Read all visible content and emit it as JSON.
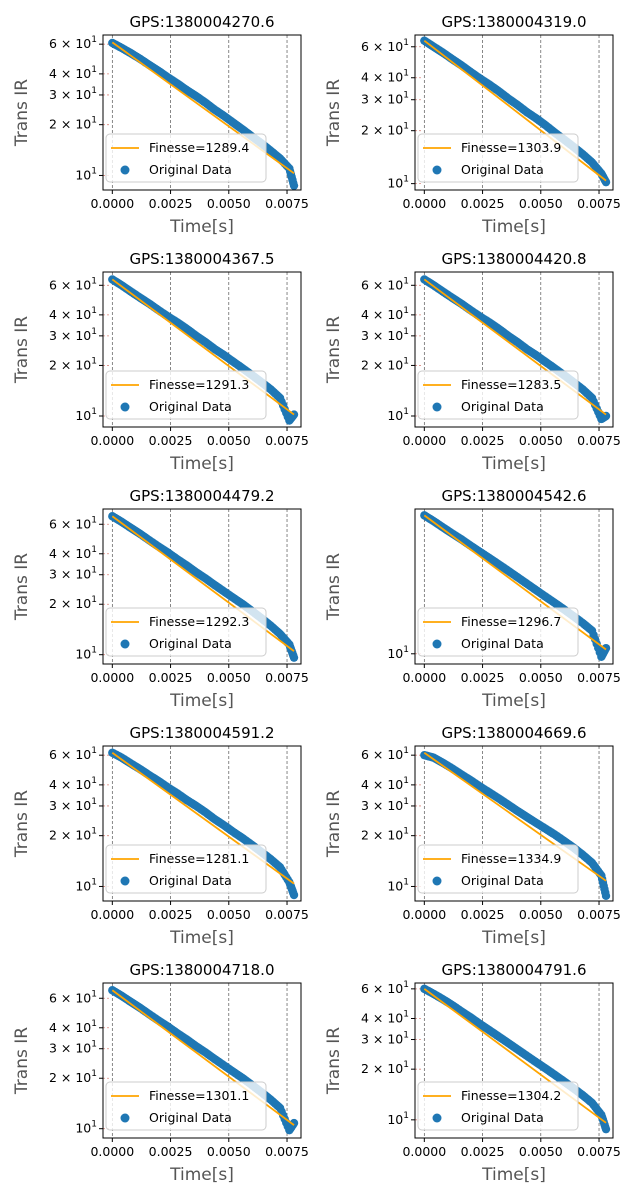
{
  "chart_data": [
    {
      "type": "scatter",
      "title": "GPS:1380004270.6",
      "xlabel": "Time[s]",
      "ylabel": "Trans IR",
      "yscale": "log",
      "xlim": [
        -0.0004,
        0.0081
      ],
      "ylim": [
        8.2,
        68
      ],
      "xticks": [
        "0.0000",
        "0.0025",
        "0.0050",
        "0.0075"
      ],
      "yticks": [
        {
          "v": 10,
          "m": "",
          "e": "1"
        },
        {
          "v": 20,
          "m": "2 × ",
          "e": "1"
        },
        {
          "v": 30,
          "m": "3 × ",
          "e": "1"
        },
        {
          "v": 40,
          "m": "4 × ",
          "e": "1"
        },
        {
          "v": 60,
          "m": "6 × ",
          "e": "1"
        }
      ],
      "fit": {
        "name": "Finesse=1289.4",
        "y0": 61.5,
        "y1": 10.3
      },
      "series": [
        {
          "name": "Original Data",
          "x": [
            0.0,
            0.0004,
            0.0008,
            0.0012,
            0.0016,
            0.002,
            0.0024,
            0.0028,
            0.0032,
            0.0036,
            0.004,
            0.0044,
            0.0048,
            0.0052,
            0.0056,
            0.006,
            0.0064,
            0.0068,
            0.0072,
            0.0076,
            0.0078
          ],
          "y": [
            61,
            57,
            53,
            49,
            45,
            41.5,
            38,
            35,
            32,
            29.5,
            27,
            24.5,
            22.5,
            20.5,
            18.7,
            17,
            15.5,
            14,
            12.6,
            11,
            8.7
          ]
        }
      ],
      "legend": "lower-left",
      "grid": "vertical-dashed"
    },
    {
      "type": "scatter",
      "title": "GPS:1380004319.0",
      "xlabel": "Time[s]",
      "ylabel": "Trans IR",
      "yscale": "log",
      "xlim": [
        -0.0004,
        0.0081
      ],
      "ylim": [
        9.2,
        70
      ],
      "xticks": [
        "0.0000",
        "0.0025",
        "0.0050",
        "0.0075"
      ],
      "yticks": [
        {
          "v": 10,
          "m": "",
          "e": "1"
        },
        {
          "v": 20,
          "m": "2 × ",
          "e": "1"
        },
        {
          "v": 30,
          "m": "3 × ",
          "e": "1"
        },
        {
          "v": 40,
          "m": "4 × ",
          "e": "1"
        },
        {
          "v": 60,
          "m": "6 × ",
          "e": "1"
        }
      ],
      "fit": {
        "name": "Finesse=1303.9",
        "y0": 65,
        "y1": 10.4
      },
      "series": [
        {
          "name": "Original Data",
          "x": [
            0.0,
            0.0004,
            0.0008,
            0.0012,
            0.0016,
            0.002,
            0.0024,
            0.0028,
            0.0032,
            0.0036,
            0.004,
            0.0044,
            0.0048,
            0.0052,
            0.0056,
            0.006,
            0.0064,
            0.0068,
            0.0072,
            0.0076,
            0.0078
          ],
          "y": [
            65,
            60,
            55.5,
            51,
            47,
            43,
            39.5,
            36.5,
            33.5,
            30.5,
            28,
            25.5,
            23.5,
            21.5,
            19.5,
            17.8,
            16.2,
            14.7,
            13.2,
            11.4,
            10.2
          ]
        }
      ],
      "legend": "lower-left",
      "grid": "vertical-dashed"
    },
    {
      "type": "scatter",
      "title": "GPS:1380004367.5",
      "xlabel": "Time[s]",
      "ylabel": "Trans IR",
      "yscale": "log",
      "xlim": [
        -0.0004,
        0.0081
      ],
      "ylim": [
        8.6,
        72
      ],
      "xticks": [
        "0.0000",
        "0.0025",
        "0.0050",
        "0.0075"
      ],
      "yticks": [
        {
          "v": 10,
          "m": "",
          "e": "1"
        },
        {
          "v": 20,
          "m": "2 × ",
          "e": "1"
        },
        {
          "v": 30,
          "m": "3 × ",
          "e": "1"
        },
        {
          "v": 40,
          "m": "4 × ",
          "e": "1"
        },
        {
          "v": 60,
          "m": "6 × ",
          "e": "1"
        }
      ],
      "fit": {
        "name": "Finesse=1291.3",
        "y0": 65,
        "y1": 10.2
      },
      "series": [
        {
          "name": "Original Data",
          "x": [
            0.0,
            0.0004,
            0.0008,
            0.0012,
            0.0016,
            0.002,
            0.0024,
            0.0028,
            0.0032,
            0.0036,
            0.004,
            0.0044,
            0.0048,
            0.0052,
            0.0056,
            0.006,
            0.0064,
            0.0068,
            0.0072,
            0.0076,
            0.0078
          ],
          "y": [
            65,
            60,
            55,
            50.5,
            46.5,
            42.5,
            39,
            36,
            33,
            30,
            27.5,
            25,
            23,
            21,
            19.2,
            17.5,
            15.9,
            14.4,
            12.8,
            9.4,
            10.2
          ]
        }
      ],
      "legend": "lower-left",
      "grid": "vertical-dashed"
    },
    {
      "type": "scatter",
      "title": "GPS:1380004420.8",
      "xlabel": "Time[s]",
      "ylabel": "Trans IR",
      "yscale": "log",
      "xlim": [
        -0.0004,
        0.0081
      ],
      "ylim": [
        8.6,
        72
      ],
      "xticks": [
        "0.0000",
        "0.0025",
        "0.0050",
        "0.0075"
      ],
      "yticks": [
        {
          "v": 10,
          "m": "",
          "e": "1"
        },
        {
          "v": 20,
          "m": "2 × ",
          "e": "1"
        },
        {
          "v": 30,
          "m": "3 × ",
          "e": "1"
        },
        {
          "v": 40,
          "m": "4 × ",
          "e": "1"
        },
        {
          "v": 60,
          "m": "6 × ",
          "e": "1"
        }
      ],
      "fit": {
        "name": "Finesse=1283.5",
        "y0": 65,
        "y1": 10.2
      },
      "series": [
        {
          "name": "Original Data",
          "x": [
            0.0,
            0.0004,
            0.0008,
            0.0012,
            0.0016,
            0.002,
            0.0024,
            0.0028,
            0.0032,
            0.0036,
            0.004,
            0.0044,
            0.0048,
            0.0052,
            0.0056,
            0.006,
            0.0064,
            0.0068,
            0.0072,
            0.0076,
            0.0078
          ],
          "y": [
            65,
            60,
            55,
            50.5,
            46.5,
            42.5,
            39,
            36,
            33,
            30,
            27.5,
            25,
            23,
            21,
            19.2,
            17.5,
            15.9,
            14.4,
            12.8,
            9.6,
            10
          ]
        }
      ],
      "legend": "lower-left",
      "grid": "vertical-dashed"
    },
    {
      "type": "scatter",
      "title": "GPS:1380004479.2",
      "xlabel": "Time[s]",
      "ylabel": "Trans IR",
      "yscale": "log",
      "xlim": [
        -0.0004,
        0.0081
      ],
      "ylim": [
        8.8,
        74
      ],
      "xticks": [
        "0.0000",
        "0.0025",
        "0.0050",
        "0.0075"
      ],
      "yticks": [
        {
          "v": 10,
          "m": "",
          "e": "1"
        },
        {
          "v": 20,
          "m": "2 × ",
          "e": "1"
        },
        {
          "v": 30,
          "m": "3 × ",
          "e": "1"
        },
        {
          "v": 40,
          "m": "4 × ",
          "e": "1"
        },
        {
          "v": 60,
          "m": "6 × ",
          "e": "1"
        }
      ],
      "fit": {
        "name": "Finesse=1292.3",
        "y0": 67,
        "y1": 10.5
      },
      "series": [
        {
          "name": "Original Data",
          "x": [
            0.0,
            0.0004,
            0.0008,
            0.0012,
            0.0016,
            0.002,
            0.0024,
            0.0028,
            0.0032,
            0.0036,
            0.004,
            0.0044,
            0.0048,
            0.0052,
            0.0056,
            0.006,
            0.0064,
            0.0068,
            0.0072,
            0.0076,
            0.0078
          ],
          "y": [
            67,
            62,
            57,
            52.5,
            48,
            44,
            40.5,
            37,
            34,
            31,
            28.5,
            26,
            23.8,
            21.8,
            20,
            18.2,
            16.5,
            14.9,
            13.3,
            11.5,
            9.6
          ]
        }
      ],
      "legend": "lower-left",
      "grid": "vertical-dashed"
    },
    {
      "type": "scatter",
      "title": "GPS:1380004542.6",
      "xlabel": "Time[s]",
      "ylabel": "Trans IR",
      "yscale": "log",
      "xlim": [
        -0.0004,
        0.0081
      ],
      "ylim": [
        8.7,
        72
      ],
      "xticks": [
        "0.0000",
        "0.0025",
        "0.0050",
        "0.0075"
      ],
      "yticks": [
        {
          "v": 10,
          "m": "",
          "e": "1"
        }
      ],
      "fit": {
        "name": "Finesse=1296.7",
        "y0": 66,
        "y1": 10.6
      },
      "series": [
        {
          "name": "Original Data",
          "x": [
            0.0,
            0.0004,
            0.0008,
            0.0012,
            0.0016,
            0.002,
            0.0024,
            0.0028,
            0.0032,
            0.0036,
            0.004,
            0.0044,
            0.0048,
            0.0052,
            0.0056,
            0.006,
            0.0064,
            0.0068,
            0.0072,
            0.0076,
            0.0078
          ],
          "y": [
            66,
            61,
            56,
            51.5,
            47.5,
            43.5,
            40,
            36.8,
            33.8,
            31,
            28.4,
            26,
            23.8,
            21.8,
            20,
            18.3,
            16.7,
            15.2,
            13.7,
            9.6,
            10.8
          ]
        }
      ],
      "legend": "lower-left",
      "grid": "vertical-dashed"
    },
    {
      "type": "scatter",
      "title": "GPS:1380004591.2",
      "xlabel": "Time[s]",
      "ylabel": "Trans IR",
      "yscale": "log",
      "xlim": [
        -0.0004,
        0.0081
      ],
      "ylim": [
        8.2,
        68
      ],
      "xticks": [
        "0.0000",
        "0.0025",
        "0.0050",
        "0.0075"
      ],
      "yticks": [
        {
          "v": 10,
          "m": "",
          "e": "1"
        },
        {
          "v": 20,
          "m": "2 × ",
          "e": "1"
        },
        {
          "v": 30,
          "m": "3 × ",
          "e": "1"
        },
        {
          "v": 40,
          "m": "4 × ",
          "e": "1"
        },
        {
          "v": 60,
          "m": "6 × ",
          "e": "1"
        }
      ],
      "fit": {
        "name": "Finesse=1281.1",
        "y0": 62,
        "y1": 10.4
      },
      "series": [
        {
          "name": "Original Data",
          "x": [
            0.0,
            0.0004,
            0.0008,
            0.0012,
            0.0016,
            0.002,
            0.0024,
            0.0028,
            0.0032,
            0.0036,
            0.004,
            0.0044,
            0.0048,
            0.0052,
            0.0056,
            0.006,
            0.0064,
            0.0068,
            0.0072,
            0.0076,
            0.0078
          ],
          "y": [
            62,
            58,
            53.5,
            49.5,
            45.5,
            42,
            38.5,
            35.5,
            32.5,
            30,
            27.5,
            25,
            23,
            21,
            19.3,
            17.6,
            16,
            14.5,
            13,
            10.6,
            8.9
          ]
        }
      ],
      "legend": "lower-left",
      "grid": "vertical-dashed"
    },
    {
      "type": "scatter",
      "title": "GPS:1380004669.6",
      "xlabel": "Time[s]",
      "ylabel": "Trans IR",
      "yscale": "log",
      "xlim": [
        -0.0004,
        0.0081
      ],
      "ylim": [
        8.2,
        68
      ],
      "xticks": [
        "0.0000",
        "0.0025",
        "0.0050",
        "0.0075"
      ],
      "yticks": [
        {
          "v": 10,
          "m": "",
          "e": "1"
        },
        {
          "v": 20,
          "m": "2 × ",
          "e": "1"
        },
        {
          "v": 30,
          "m": "3 × ",
          "e": "1"
        },
        {
          "v": 40,
          "m": "4 × ",
          "e": "1"
        },
        {
          "v": 60,
          "m": "6 × ",
          "e": "1"
        }
      ],
      "fit": {
        "name": "Finesse=1334.9",
        "y0": 62,
        "y1": 10.8
      },
      "series": [
        {
          "name": "Original Data",
          "x": [
            0.0,
            0.0004,
            0.0008,
            0.0012,
            0.0016,
            0.002,
            0.0024,
            0.0028,
            0.0032,
            0.0036,
            0.004,
            0.0044,
            0.0048,
            0.0052,
            0.0056,
            0.006,
            0.0064,
            0.0068,
            0.0072,
            0.0076,
            0.0078
          ],
          "y": [
            60,
            58,
            54,
            50,
            46,
            42.5,
            39,
            36,
            33.2,
            30.5,
            28,
            25.8,
            23.8,
            22,
            20.3,
            18.6,
            17,
            15.4,
            13.8,
            11.6,
            8.8
          ]
        }
      ],
      "legend": "lower-left",
      "grid": "vertical-dashed"
    },
    {
      "type": "scatter",
      "title": "GPS:1380004718.0",
      "xlabel": "Time[s]",
      "ylabel": "Trans IR",
      "yscale": "log",
      "xlim": [
        -0.0004,
        0.0081
      ],
      "ylim": [
        8.8,
        74
      ],
      "xticks": [
        "0.0000",
        "0.0025",
        "0.0050",
        "0.0075"
      ],
      "yticks": [
        {
          "v": 10,
          "m": "",
          "e": "1"
        },
        {
          "v": 20,
          "m": "2 × ",
          "e": "1"
        },
        {
          "v": 30,
          "m": "3 × ",
          "e": "1"
        },
        {
          "v": 40,
          "m": "4 × ",
          "e": "1"
        },
        {
          "v": 60,
          "m": "6 × ",
          "e": "1"
        }
      ],
      "fit": {
        "name": "Finesse=1301.1",
        "y0": 67,
        "y1": 10.5
      },
      "series": [
        {
          "name": "Original Data",
          "x": [
            0.0,
            0.0004,
            0.0008,
            0.0012,
            0.0016,
            0.002,
            0.0024,
            0.0028,
            0.0032,
            0.0036,
            0.004,
            0.0044,
            0.0048,
            0.0052,
            0.0056,
            0.006,
            0.0064,
            0.0068,
            0.0072,
            0.0076,
            0.0078
          ],
          "y": [
            67,
            62,
            57,
            52.5,
            48,
            44,
            40.5,
            37,
            34,
            31,
            28.5,
            26,
            23.8,
            21.8,
            20,
            18.2,
            16.5,
            14.9,
            13.3,
            9.8,
            10.8
          ]
        }
      ],
      "legend": "lower-left",
      "grid": "vertical-dashed"
    },
    {
      "type": "scatter",
      "title": "GPS:1380004791.6",
      "xlabel": "Time[s]",
      "ylabel": "Trans IR",
      "yscale": "log",
      "xlim": [
        -0.0004,
        0.0081
      ],
      "ylim": [
        7.8,
        65
      ],
      "xticks": [
        "0.0000",
        "0.0025",
        "0.0050",
        "0.0075"
      ],
      "yticks": [
        {
          "v": 10,
          "m": "",
          "e": "1"
        },
        {
          "v": 20,
          "m": "2 × ",
          "e": "1"
        },
        {
          "v": 30,
          "m": "3 × ",
          "e": "1"
        },
        {
          "v": 40,
          "m": "4 × ",
          "e": "1"
        },
        {
          "v": 60,
          "m": "6 × ",
          "e": "1"
        }
      ],
      "fit": {
        "name": "Finesse=1304.2",
        "y0": 60,
        "y1": 9.6
      },
      "series": [
        {
          "name": "Original Data",
          "x": [
            0.0,
            0.0004,
            0.0008,
            0.0012,
            0.0016,
            0.002,
            0.0024,
            0.0028,
            0.0032,
            0.0036,
            0.004,
            0.0044,
            0.0048,
            0.0052,
            0.0056,
            0.006,
            0.0064,
            0.0068,
            0.0072,
            0.0076,
            0.0078
          ],
          "y": [
            60,
            56,
            52,
            48,
            44,
            40.5,
            37,
            34,
            31.2,
            28.6,
            26.2,
            24,
            22,
            20.2,
            18.5,
            16.9,
            15.4,
            14,
            12.6,
            10.7,
            8.8
          ]
        }
      ],
      "legend": "lower-left",
      "grid": "vertical-dashed"
    }
  ],
  "colors": {
    "data": "#1f77b4",
    "fit": "#ffa500",
    "grid": "#555555"
  }
}
